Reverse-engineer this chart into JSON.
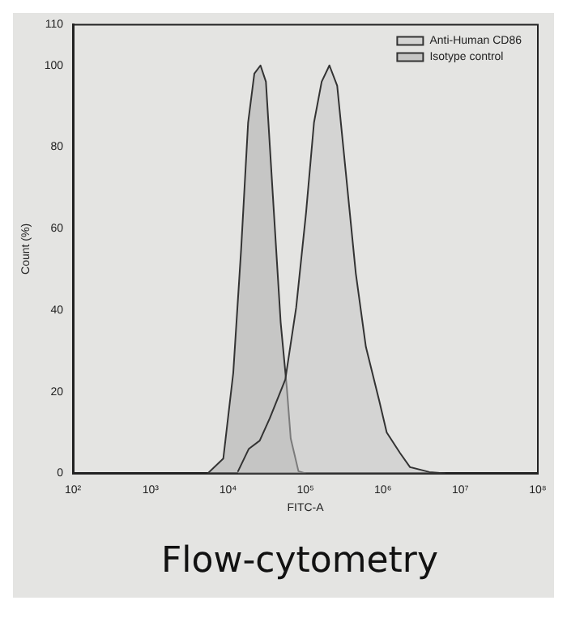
{
  "chart_data": {
    "type": "area",
    "title": "Flow-cytometry",
    "xlabel": "FITC-A",
    "ylabel": "Count (%)",
    "log": "x",
    "xlim": [
      100,
      100000000
    ],
    "xticks": [
      {
        "value": 100,
        "label": "10²"
      },
      {
        "value": 1000,
        "label": "10³"
      },
      {
        "value": 10000,
        "label": "10⁴"
      },
      {
        "value": 100000,
        "label": "10⁵"
      },
      {
        "value": 1000000,
        "label": "10⁶"
      },
      {
        "value": 10000000,
        "label": "10⁷"
      },
      {
        "value": 100000000,
        "label": "10⁸"
      }
    ],
    "ylim": [
      0,
      110
    ],
    "yticks": [
      0,
      20,
      40,
      60,
      80,
      100,
      110
    ],
    "grid": false,
    "legend": "top right",
    "marker": "none",
    "line_style": "solid",
    "series": [
      {
        "name": "Anti-Human CD86",
        "color": "#c4c4c4",
        "x": [
          13500,
          18600,
          25700,
          34700,
          55000,
          75900,
          102000,
          129000,
          162000,
          204000,
          257000,
          331000,
          447000,
          603000,
          891000,
          1120000,
          1660000,
          2240000,
          3980000,
          6310000
        ],
        "values": [
          0.5,
          6,
          8,
          13.5,
          23,
          40.6,
          64,
          86,
          96,
          100,
          95,
          74,
          49,
          31,
          18,
          10,
          5,
          1.5,
          0.3,
          0
        ]
      },
      {
        "name": "Isotype control",
        "color": "#a8a8a8",
        "x": [
          5500,
          8700,
          11700,
          14800,
          18200,
          21900,
          26300,
          30900,
          38000,
          47900,
          57500,
          64600,
          81300,
          100000
        ],
        "values": [
          0,
          3.6,
          24.6,
          55,
          86,
          98,
          100,
          96,
          68,
          37,
          21,
          8.5,
          0.5,
          0
        ]
      }
    ]
  }
}
